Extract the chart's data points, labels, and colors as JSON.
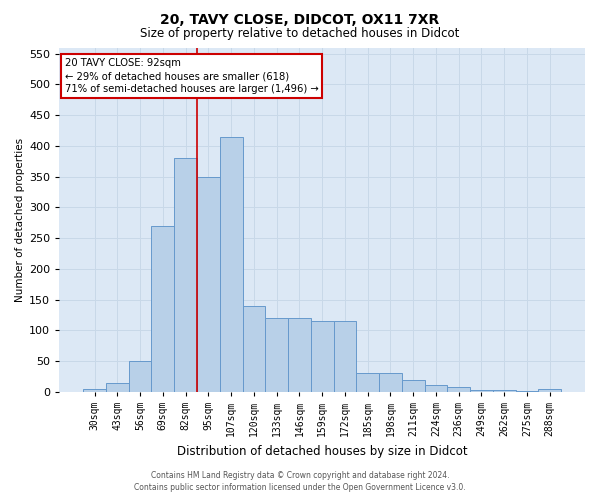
{
  "title_line1": "20, TAVY CLOSE, DIDCOT, OX11 7XR",
  "title_line2": "Size of property relative to detached houses in Didcot",
  "xlabel": "Distribution of detached houses by size in Didcot",
  "ylabel": "Number of detached properties",
  "footer_line1": "Contains HM Land Registry data © Crown copyright and database right 2024.",
  "footer_line2": "Contains public sector information licensed under the Open Government Licence v3.0.",
  "categories": [
    "30sqm",
    "43sqm",
    "56sqm",
    "69sqm",
    "82sqm",
    "95sqm",
    "107sqm",
    "120sqm",
    "133sqm",
    "146sqm",
    "159sqm",
    "172sqm",
    "185sqm",
    "198sqm",
    "211sqm",
    "224sqm",
    "236sqm",
    "249sqm",
    "262sqm",
    "275sqm",
    "288sqm"
  ],
  "values": [
    5,
    15,
    50,
    270,
    380,
    350,
    415,
    140,
    120,
    120,
    115,
    115,
    30,
    30,
    20,
    12,
    8,
    3,
    3,
    2,
    5
  ],
  "bar_color": "#b8d0e8",
  "bar_edge_color": "#6699cc",
  "grid_color": "#c8d8e8",
  "bg_color": "#dce8f5",
  "ylim": [
    0,
    560
  ],
  "yticks": [
    0,
    50,
    100,
    150,
    200,
    250,
    300,
    350,
    400,
    450,
    500,
    550
  ],
  "vline_x": 4.5,
  "vline_color": "#cc0000",
  "annotation_text": "20 TAVY CLOSE: 92sqm\n← 29% of detached houses are smaller (618)\n71% of semi-detached houses are larger (1,496) →",
  "annotation_box_color": "white",
  "annotation_box_edge": "#cc0000",
  "title1_fontsize": 10,
  "title2_fontsize": 8.5,
  "xlabel_fontsize": 8.5,
  "ylabel_fontsize": 7.5,
  "xtick_fontsize": 7,
  "ytick_fontsize": 8,
  "footer_fontsize": 5.5
}
